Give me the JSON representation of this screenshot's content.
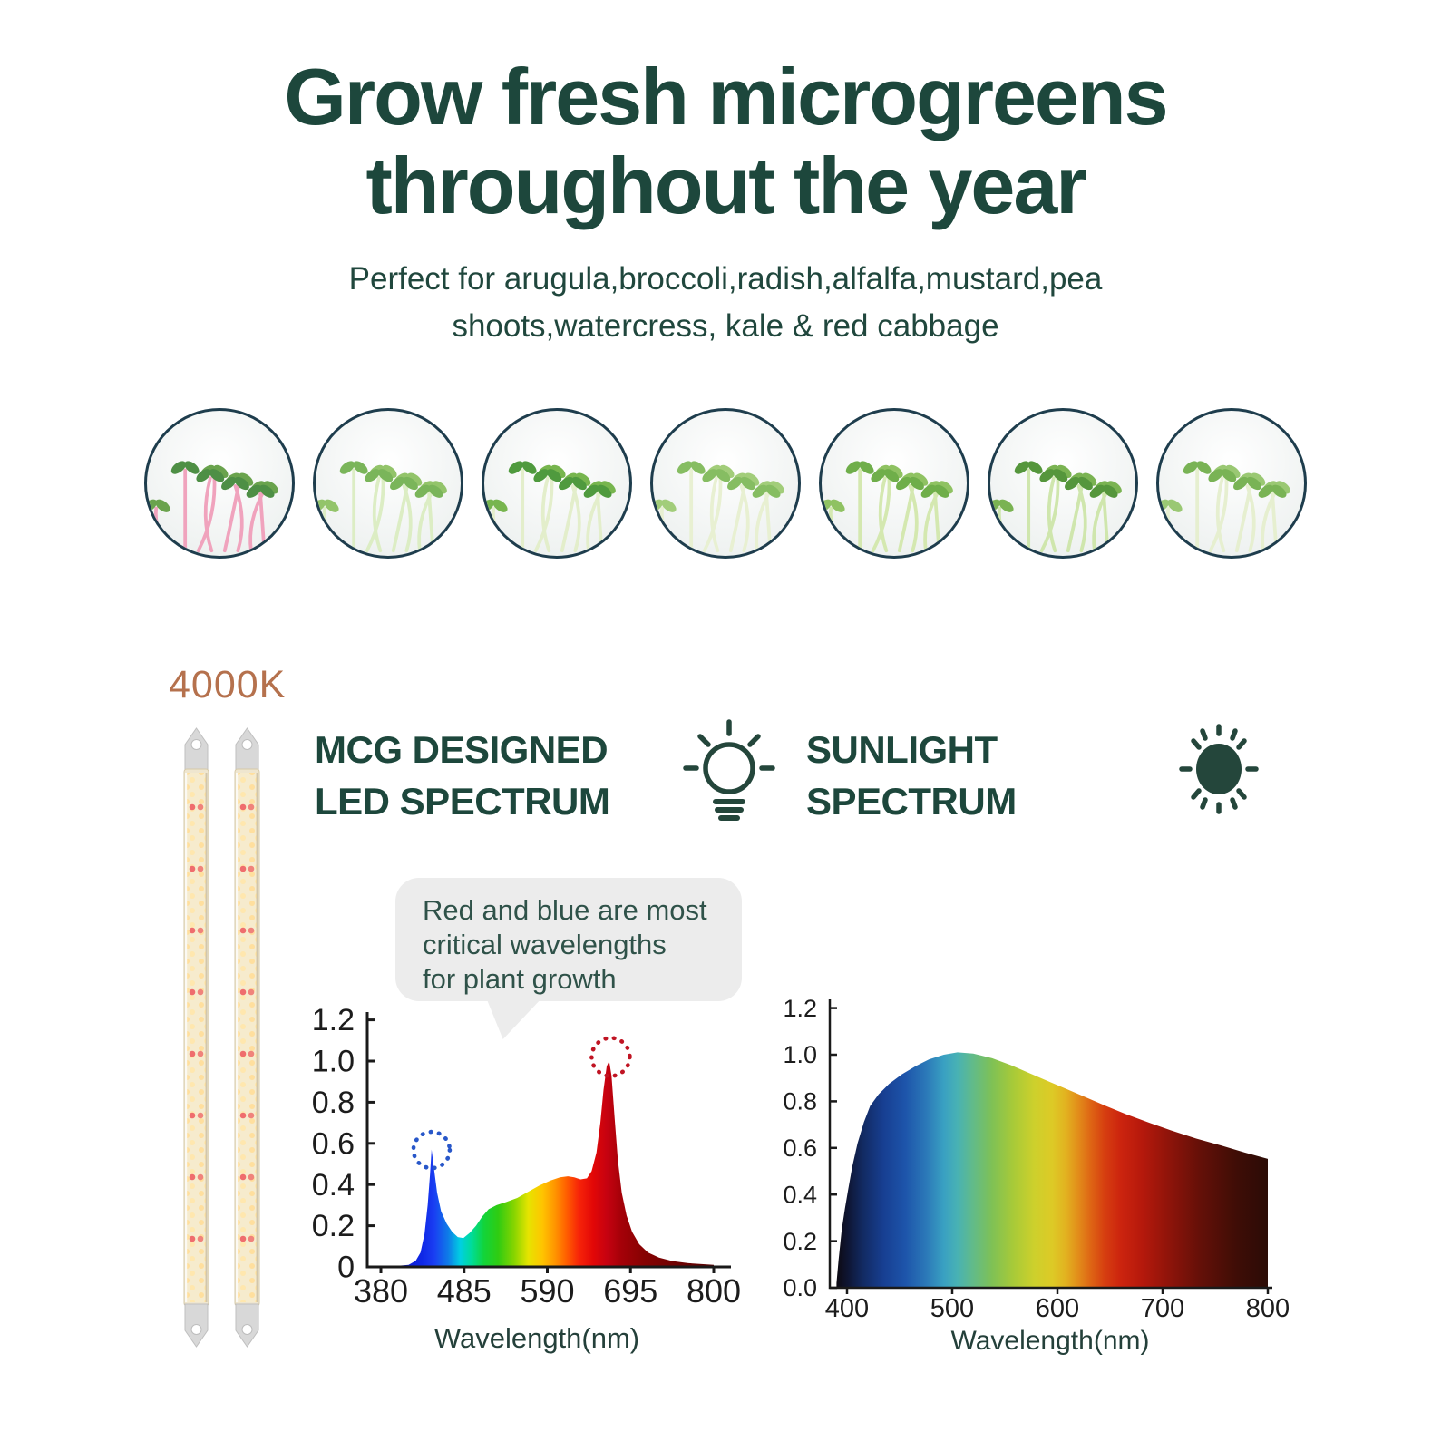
{
  "page": {
    "title": "Grow fresh microgreens\nthroughout the year",
    "subtitle": "Perfect for arugula,broccoli,radish,alfalfa,mustard,pea\nshoots,watercress, kale & red cabbage"
  },
  "colors": {
    "dark_green": "#1d473c",
    "accent_terracotta": "#b5714d",
    "callout_bg": "#ececec",
    "photo_border": "#1e3d4d",
    "blue_marker": "#2857c9",
    "red_marker": "#c01423"
  },
  "gallery": {
    "items": [
      {
        "name": "microgreen-photo-1",
        "stem": "#f0a3bd",
        "leaf": "#4e8f45",
        "leaf2": "#6aa34d"
      },
      {
        "name": "microgreen-photo-2",
        "stem": "#dcedc4",
        "leaf": "#7ab55a",
        "leaf2": "#93c46a"
      },
      {
        "name": "microgreen-photo-3",
        "stem": "#e3eecb",
        "leaf": "#4f9a3e",
        "leaf2": "#77b54e"
      },
      {
        "name": "microgreen-photo-4",
        "stem": "#e8f0d2",
        "leaf": "#86bd62",
        "leaf2": "#a2cd7a"
      },
      {
        "name": "microgreen-photo-5",
        "stem": "#d4e8b0",
        "leaf": "#6fae4a",
        "leaf2": "#8fc262"
      },
      {
        "name": "microgreen-photo-6",
        "stem": "#cfe6ad",
        "leaf": "#55963c",
        "leaf2": "#7ab352"
      },
      {
        "name": "microgreen-photo-7",
        "stem": "#e6efd0",
        "leaf": "#79b355",
        "leaf2": "#9ac873"
      }
    ]
  },
  "lamp": {
    "color_temp_label": "4000K",
    "bar_count": 2
  },
  "sections": {
    "led": {
      "heading": "MCG DESIGNED\nLED SPECTRUM",
      "icon": "lightbulb-icon"
    },
    "sun": {
      "heading": "SUNLIGHT\nSPECTRUM",
      "icon": "sun-icon"
    }
  },
  "callout": {
    "text": "Red and blue are most\ncritical wavelengths\nfor plant growth"
  },
  "chart_data": [
    {
      "id": "led-spectrum-chart",
      "type": "area",
      "title": "MCG DESIGNED LED SPECTRUM",
      "xlabel": "Wavelength(nm)",
      "xlim": [
        380,
        800
      ],
      "ylim": [
        0,
        1.2
      ],
      "x_ticks": [
        380,
        485,
        590,
        695,
        800
      ],
      "y_ticks": [
        0,
        0.2,
        0.4,
        0.6,
        0.8,
        1.0,
        1.2
      ],
      "y_tick_labels": [
        "0",
        "0.2",
        "0.4",
        "0.6",
        "0.8",
        "1.0",
        "1.2"
      ],
      "grid": false,
      "points": [
        [
          380,
          0
        ],
        [
          400,
          0.005
        ],
        [
          415,
          0.01
        ],
        [
          424,
          0.03
        ],
        [
          430,
          0.07
        ],
        [
          435,
          0.16
        ],
        [
          439,
          0.3
        ],
        [
          442,
          0.45
        ],
        [
          444,
          0.57
        ],
        [
          447,
          0.48
        ],
        [
          451,
          0.36
        ],
        [
          456,
          0.27
        ],
        [
          463,
          0.21
        ],
        [
          470,
          0.17
        ],
        [
          477,
          0.145
        ],
        [
          484,
          0.14
        ],
        [
          492,
          0.165
        ],
        [
          500,
          0.2
        ],
        [
          508,
          0.245
        ],
        [
          516,
          0.28
        ],
        [
          526,
          0.3
        ],
        [
          538,
          0.315
        ],
        [
          552,
          0.335
        ],
        [
          566,
          0.365
        ],
        [
          580,
          0.395
        ],
        [
          594,
          0.42
        ],
        [
          606,
          0.435
        ],
        [
          616,
          0.44
        ],
        [
          624,
          0.435
        ],
        [
          632,
          0.425
        ],
        [
          640,
          0.43
        ],
        [
          646,
          0.465
        ],
        [
          652,
          0.555
        ],
        [
          657,
          0.7
        ],
        [
          661,
          0.86
        ],
        [
          665,
          0.975
        ],
        [
          668,
          1.0
        ],
        [
          671,
          0.93
        ],
        [
          675,
          0.72
        ],
        [
          679,
          0.52
        ],
        [
          684,
          0.36
        ],
        [
          690,
          0.25
        ],
        [
          697,
          0.17
        ],
        [
          706,
          0.11
        ],
        [
          717,
          0.07
        ],
        [
          731,
          0.045
        ],
        [
          748,
          0.028
        ],
        [
          768,
          0.018
        ],
        [
          800,
          0.01
        ]
      ],
      "gradient": [
        [
          380,
          "#0a0ab8"
        ],
        [
          432,
          "#0f28e6"
        ],
        [
          447,
          "#1a3df2"
        ],
        [
          465,
          "#0e7ce8"
        ],
        [
          480,
          "#00cfe2"
        ],
        [
          495,
          "#00dc96"
        ],
        [
          510,
          "#12d43a"
        ],
        [
          528,
          "#2fcc12"
        ],
        [
          548,
          "#86d400"
        ],
        [
          566,
          "#e6e400"
        ],
        [
          584,
          "#ffc400"
        ],
        [
          600,
          "#ff9400"
        ],
        [
          614,
          "#ff5f00"
        ],
        [
          630,
          "#f72408"
        ],
        [
          648,
          "#e20707"
        ],
        [
          665,
          "#c60210"
        ],
        [
          684,
          "#a40108"
        ],
        [
          712,
          "#860202"
        ],
        [
          755,
          "#6d0202"
        ],
        [
          800,
          "#5a0303"
        ]
      ],
      "peak_markers": [
        {
          "name": "blue-peak-marker",
          "x": 444,
          "y": 0.568,
          "r": 20,
          "color": "#2857c9"
        },
        {
          "name": "red-peak-marker",
          "x": 670,
          "y": 1.02,
          "r": 21,
          "color": "#c01423"
        }
      ]
    },
    {
      "id": "sunlight-spectrum-chart",
      "type": "area",
      "title": "SUNLIGHT SPECTRUM",
      "xlabel": "Wavelength(nm)",
      "xlim": [
        400,
        800
      ],
      "ylim": [
        0,
        1.2
      ],
      "x_ticks": [
        400,
        500,
        600,
        700,
        800
      ],
      "y_ticks": [
        0,
        0.2,
        0.4,
        0.6,
        0.8,
        1.0,
        1.2
      ],
      "y_tick_labels": [
        "0.0",
        "0.2",
        "0.4",
        "0.6",
        "0.8",
        "1.0",
        "1.2"
      ],
      "grid": false,
      "points": [
        [
          390,
          0.02
        ],
        [
          392,
          0.12
        ],
        [
          395,
          0.25
        ],
        [
          398,
          0.34
        ],
        [
          401,
          0.42
        ],
        [
          405,
          0.52
        ],
        [
          410,
          0.62
        ],
        [
          416,
          0.71
        ],
        [
          422,
          0.78
        ],
        [
          430,
          0.83
        ],
        [
          440,
          0.875
        ],
        [
          452,
          0.915
        ],
        [
          465,
          0.95
        ],
        [
          478,
          0.98
        ],
        [
          492,
          1.0
        ],
        [
          505,
          1.01
        ],
        [
          520,
          1.005
        ],
        [
          538,
          0.985
        ],
        [
          556,
          0.955
        ],
        [
          574,
          0.92
        ],
        [
          592,
          0.885
        ],
        [
          610,
          0.85
        ],
        [
          628,
          0.815
        ],
        [
          646,
          0.78
        ],
        [
          665,
          0.745
        ],
        [
          686,
          0.71
        ],
        [
          708,
          0.675
        ],
        [
          732,
          0.64
        ],
        [
          756,
          0.61
        ],
        [
          778,
          0.58
        ],
        [
          800,
          0.553
        ]
      ],
      "gradient": [
        [
          390,
          "#0d0a12"
        ],
        [
          400,
          "#0e1430"
        ],
        [
          415,
          "#122a62"
        ],
        [
          435,
          "#173f92"
        ],
        [
          455,
          "#1d54aa"
        ],
        [
          475,
          "#2b78b8"
        ],
        [
          492,
          "#39a0c2"
        ],
        [
          505,
          "#48b2b4"
        ],
        [
          520,
          "#62bb88"
        ],
        [
          538,
          "#7fc155"
        ],
        [
          558,
          "#a8ca38"
        ],
        [
          578,
          "#cdd02c"
        ],
        [
          595,
          "#ddca26"
        ],
        [
          608,
          "#e2b220"
        ],
        [
          620,
          "#e28c1a"
        ],
        [
          632,
          "#de6414"
        ],
        [
          645,
          "#d63e10"
        ],
        [
          660,
          "#cc240e"
        ],
        [
          680,
          "#b6190c"
        ],
        [
          705,
          "#90140a"
        ],
        [
          735,
          "#651008"
        ],
        [
          770,
          "#3f0d06"
        ],
        [
          800,
          "#2b0c06"
        ]
      ],
      "peak_markers": []
    }
  ]
}
